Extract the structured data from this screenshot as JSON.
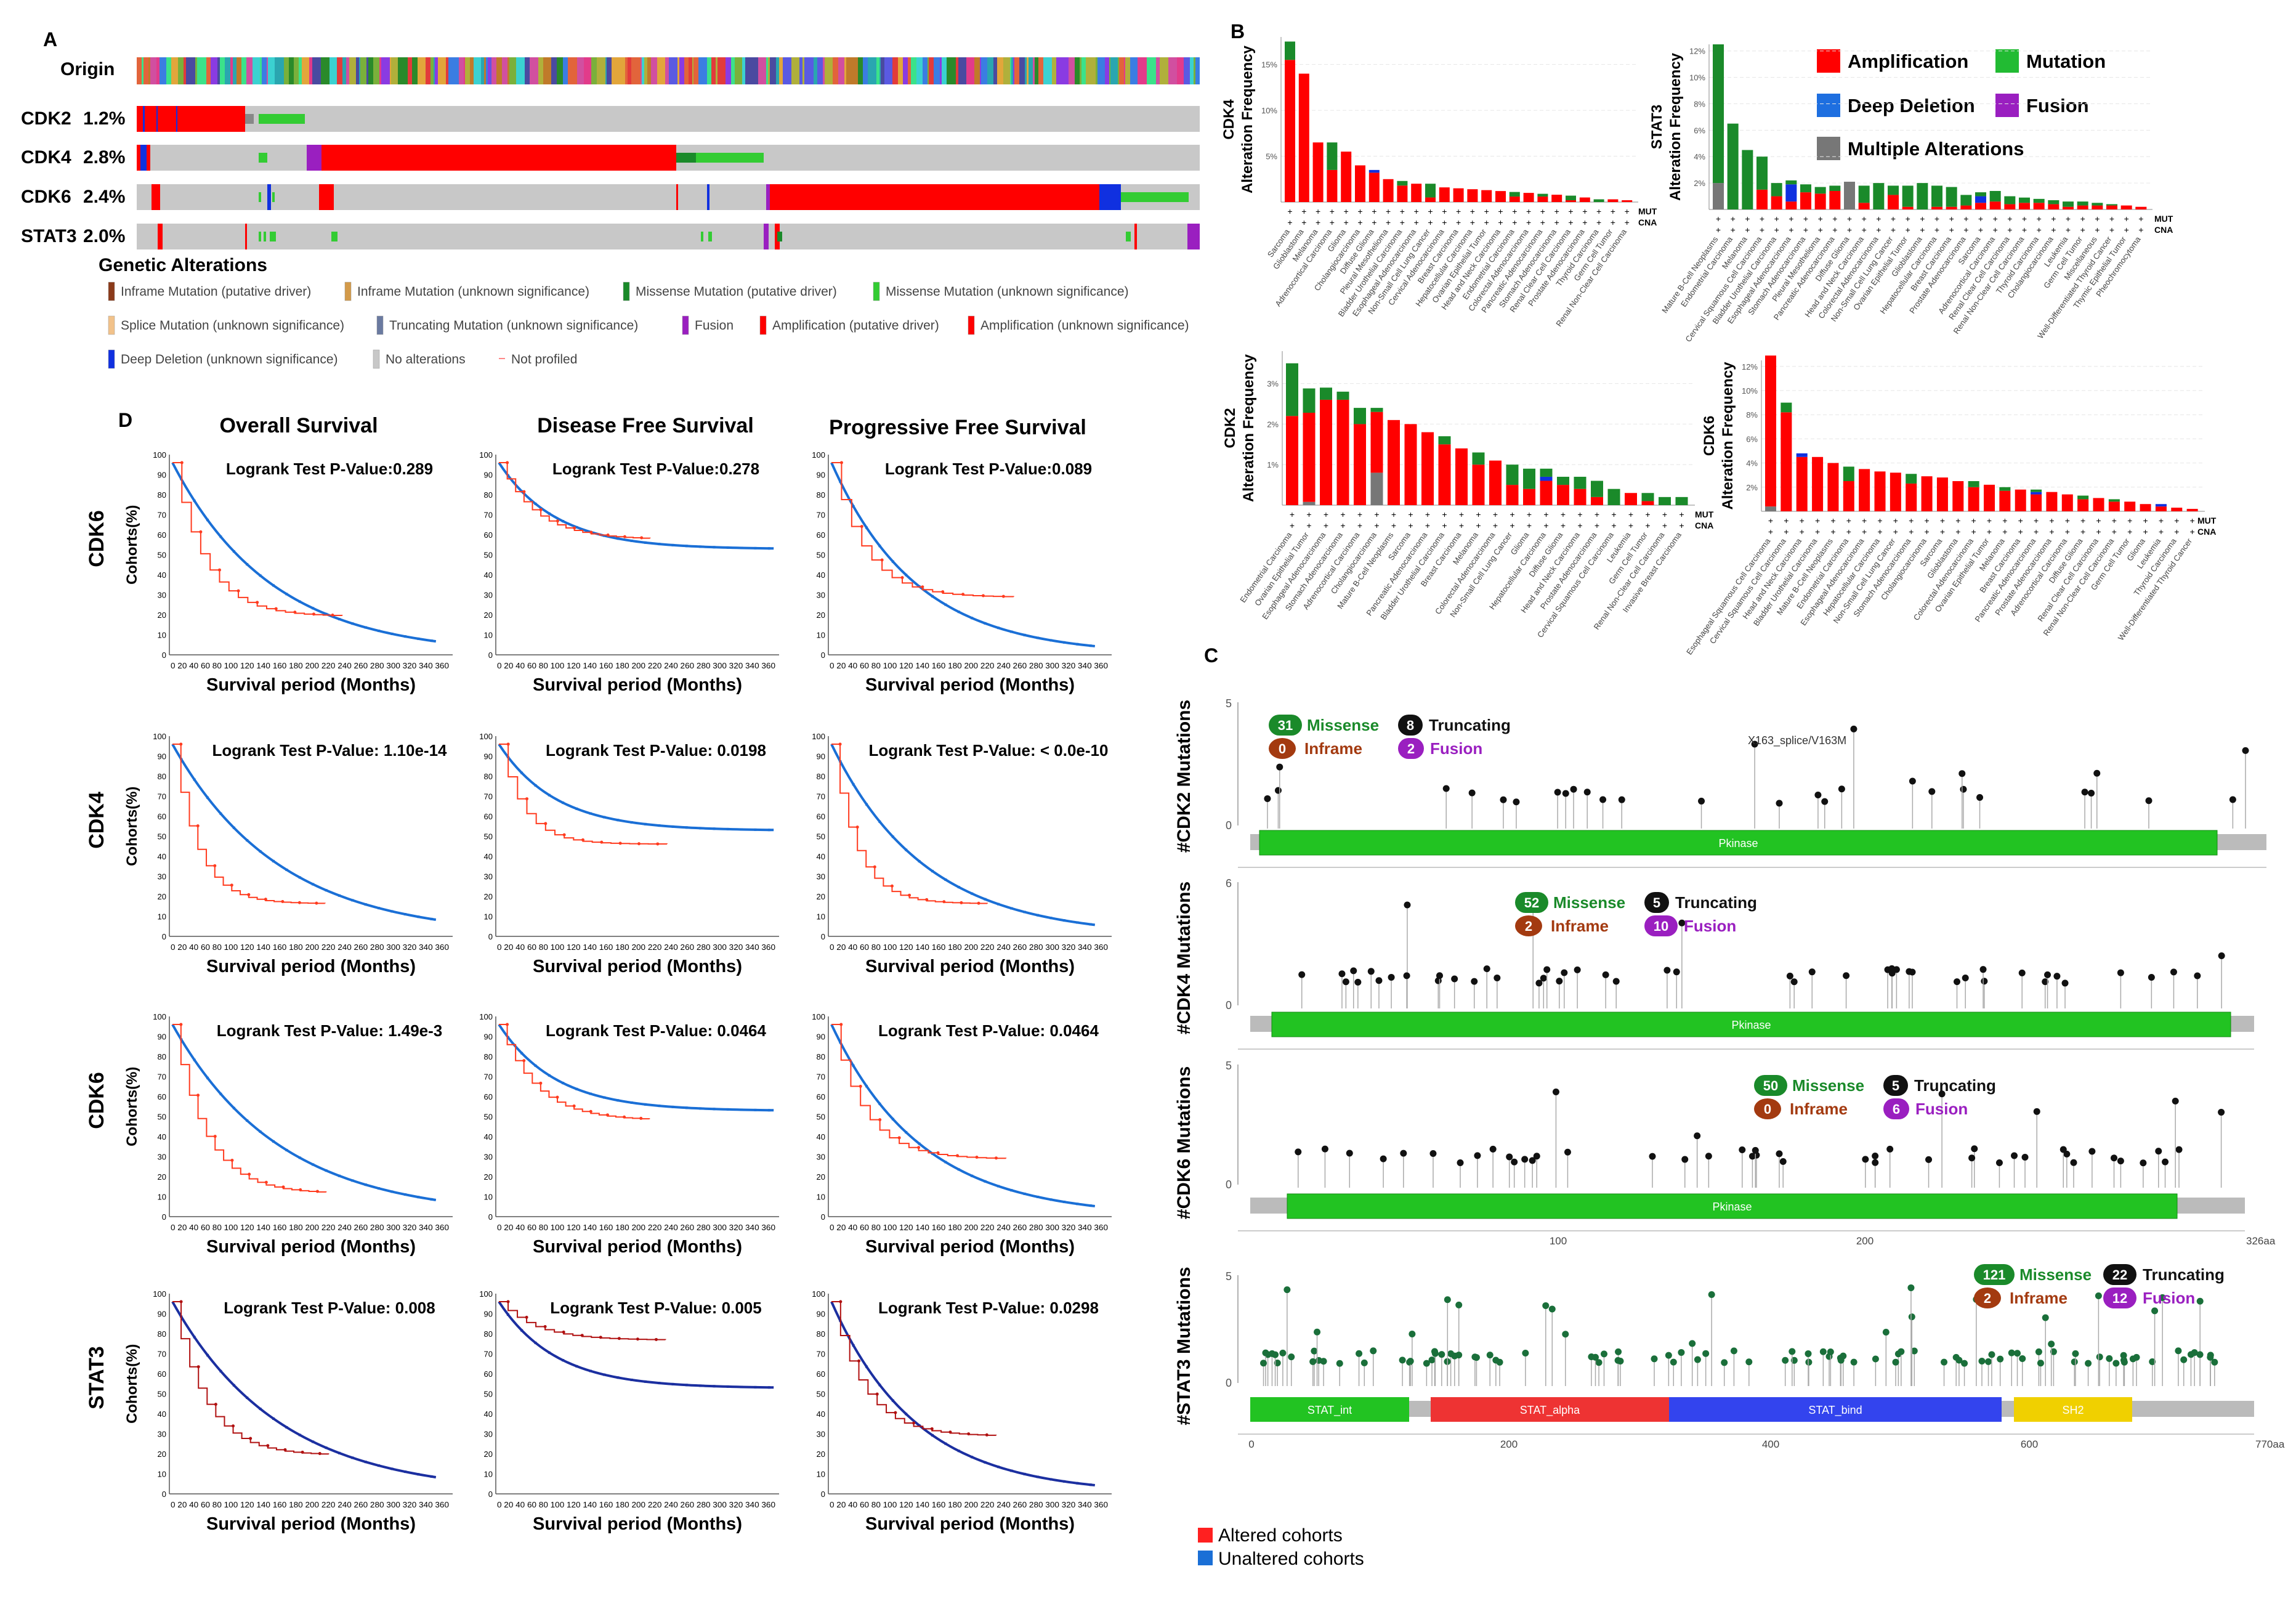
{
  "colors": {
    "amplification": "#ff0000",
    "mutation": "#1a8a2a",
    "mutation_light": "#22bb33",
    "deep_deletion": "#1030e0",
    "fusion": "#9a1fc0",
    "multiple": "#777777",
    "gray_track": "#c8c8c8",
    "altered": "#ff3b1f",
    "unaltered": "#1a6fd6",
    "pkinase": "#22c322",
    "stat_int": "#22c322",
    "stat_alpha": "#ee3333",
    "stat_bind": "#3344ee",
    "sh2": "#f0d000"
  },
  "panel_labels": {
    "a": "A",
    "b": "B",
    "c": "C",
    "d": "D"
  },
  "oncoprint": {
    "origin_label": "Origin",
    "genes": [
      {
        "name": "CDK2",
        "pct": "1.2%"
      },
      {
        "name": "CDK4",
        "pct": "2.8%"
      },
      {
        "name": "CDK6",
        "pct": "2.4%"
      },
      {
        "name": "STAT3",
        "pct": "2.0%"
      }
    ],
    "legend_title": "Genetic Alterations",
    "legend_items": [
      {
        "label": "Inframe Mutation (putative driver)",
        "color": "#8b3a1a"
      },
      {
        "label": "Inframe Mutation (unknown significance)",
        "color": "#d39a4a"
      },
      {
        "label": "Missense Mutation (putative driver)",
        "color": "#1a8a2a"
      },
      {
        "label": "Missense Mutation (unknown significance)",
        "color": "#33cc33"
      },
      {
        "label": "Splice Mutation (unknown significance)",
        "color": "#f2c28a"
      },
      {
        "label": "Truncating Mutation (unknown significance)",
        "color": "#6a7aa0"
      },
      {
        "label": "Fusion",
        "color": "#9a1fc0"
      },
      {
        "label": "Amplification (putative driver)",
        "color": "#ff0000"
      },
      {
        "label": "Amplification (unknown significance)",
        "color": "#ff0000"
      },
      {
        "label": "Deep Deletion (unknown significance)",
        "color": "#1030e0"
      },
      {
        "label": "No alterations",
        "color": "#c8c8c8"
      },
      {
        "label": "Not profiled",
        "color": "#ffffff"
      }
    ]
  },
  "panel_b": {
    "legend": [
      "Amplification",
      "Mutation",
      "Deep Deletion",
      "Fusion",
      "Multiple Alterations"
    ],
    "mut_label": "MUT",
    "cna_label": "CNA",
    "plus": "+",
    "y_label": "Alteration Frequency",
    "genes": [
      "CDK4",
      "STAT3",
      "CDK2",
      "CDK6"
    ],
    "cdk4_ticks": [
      "15%",
      "10%",
      "5%"
    ],
    "stat3_ticks": [
      "12%",
      "10%",
      "8%",
      "6%",
      "4%",
      "2%"
    ],
    "cdk2_ticks": [
      "3%",
      "2%",
      "1%"
    ],
    "cdk6_ticks": [
      "12%",
      "10%",
      "8%",
      "6%",
      "4%",
      "2%"
    ],
    "cdk4_cats": [
      "Sarcoma",
      "Glioblastoma",
      "Melanoma",
      "Adrenocortical Carcinoma",
      "Glioma",
      "Cholangiocarcinoma",
      "Diffuse Glioma",
      "Pleural Mesothelioma",
      "Bladder Urothelial Carcinoma",
      "Esophageal Adenocarcinoma",
      "Non-Small Cell Lung Cancer",
      "Cervical Adenocarcinoma",
      "Breast Carcinoma",
      "Hepatocellular Carcinoma",
      "Ovarian Epithelial Tumor",
      "Head and Neck Carcinoma",
      "Endometrial Carcinoma",
      "Colorectal Adenocarcinoma",
      "Pancreatic Adenocarcinoma",
      "Stomach Adenocarcinoma",
      "Renal Clear Cell Carcinoma",
      "Prostate Adenocarcinoma",
      "Thyroid Carcinoma",
      "Germ Cell Tumor",
      "Renal Non-Clear Cell Carcinoma"
    ],
    "stat3_cats": [
      "Mature B-Cell Neoplasms",
      "Endometrial Carcinoma",
      "Melanoma",
      "Cervical Squamous Cell Carcinoma",
      "Bladder Urothelial Carcinoma",
      "Esophageal Adenocarcinoma",
      "Stomach Adenocarcinoma",
      "Pleural Mesothelioma",
      "Pancreatic Adenocarcinoma",
      "Diffuse Glioma",
      "Head and Neck Carcinoma",
      "Colorectal Adenocarcinoma",
      "Non-Small Cell Lung Cancer",
      "Ovarian Epithelial Tumor",
      "Glioblastoma",
      "Hepatocellular Carcinoma",
      "Breast Carcinoma",
      "Prostate Adenocarcinoma",
      "Sarcoma",
      "Adrenocortical Carcinoma",
      "Renal Clear Cell Carcinoma",
      "Renal Non-Clear Cell Carcinoma",
      "Thyroid Carcinoma",
      "Cholangiocarcinoma",
      "Leukemia",
      "Germ Cell Tumor",
      "Miscellaneous",
      "Well-Differentiated Thyroid Cancer",
      "Thymic Epithelial Tumor",
      "Pheochromocytoma"
    ],
    "cdk2_cats": [
      "Endometrial Carcinoma",
      "Ovarian Epithelial Tumor",
      "Esophageal Adenocarcinoma",
      "Stomach Adenocarcinoma",
      "Adrenocortical Carcinoma",
      "Cholangiocarcinoma",
      "Mature B-Cell Neoplasms",
      "Sarcoma",
      "Pancreatic Adenocarcinoma",
      "Bladder Urothelial Carcinoma",
      "Breast Carcinoma",
      "Melanoma",
      "Colorectal Adenocarcinoma",
      "Non-Small Cell Lung Cancer",
      "Glioma",
      "Hepatocellular Carcinoma",
      "Diffuse Glioma",
      "Head and Neck Carcinoma",
      "Prostate Adenocarcinoma",
      "Cervical Squamous Cell Carcinoma",
      "Leukemia",
      "Germ Cell Tumor",
      "Renal Non-Clear Cell Carcinoma",
      "Invasive Breast Carcinoma"
    ],
    "cdk6_cats": [
      "Esophageal Squamous Cell Carcinoma",
      "Cervical Squamous Cell Carcinoma",
      "Head and Neck Carcinoma",
      "Bladder Urothelial Carcinoma",
      "Mature B-Cell Neoplasms",
      "Endometrial Carcinoma",
      "Esophageal Adenocarcinoma",
      "Hepatocellular Carcinoma",
      "Non-Small Cell Lung Cancer",
      "Stomach Adenocarcinoma",
      "Cholangiocarcinoma",
      "Sarcoma",
      "Glioblastoma",
      "Colorectal Adenocarcinoma",
      "Ovarian Epithelial Tumor",
      "Melanoma",
      "Breast Carcinoma",
      "Pancreatic Adenocarcinoma",
      "Prostate Adenocarcinoma",
      "Adrenocortical Carcinoma",
      "Diffuse Glioma",
      "Renal Clear Cell Carcinoma",
      "Renal Non-Clear Cell Carcinoma",
      "Germ Cell Tumor",
      "Glioma",
      "Leukemia",
      "Thyroid Carcinoma",
      "Well-Differentiated Thyroid Cancer"
    ],
    "cdk4_stacks": [
      [
        2,
        15.5,
        0,
        0
      ],
      [
        0,
        14,
        0,
        0
      ],
      [
        0,
        6.5,
        0,
        0
      ],
      [
        3,
        3.5,
        0,
        0
      ],
      [
        0,
        5.5,
        0,
        0
      ],
      [
        0,
        4,
        0,
        0
      ],
      [
        0,
        3.2,
        0.3,
        0
      ],
      [
        0,
        2.5,
        0,
        0
      ],
      [
        0.5,
        1.8,
        0,
        0
      ],
      [
        0,
        2,
        0,
        0
      ],
      [
        1.5,
        0.5,
        0,
        0
      ],
      [
        0,
        1.6,
        0,
        0
      ],
      [
        0,
        1.5,
        0,
        0
      ],
      [
        0,
        1.4,
        0,
        0
      ],
      [
        0,
        1.3,
        0,
        0
      ],
      [
        0,
        1.2,
        0,
        0
      ],
      [
        0.5,
        0.6,
        0,
        0
      ],
      [
        0,
        1,
        0,
        0
      ],
      [
        0.3,
        0.6,
        0,
        0
      ],
      [
        0,
        0.8,
        0,
        0
      ],
      [
        0.5,
        0.2,
        0,
        0
      ],
      [
        0,
        0.5,
        0,
        0
      ],
      [
        0.3,
        0,
        0,
        0
      ],
      [
        0,
        0.3,
        0,
        0
      ],
      [
        0,
        0.2,
        0,
        0
      ]
    ],
    "stat3_stacks": [
      [
        10.5,
        0,
        0,
        0,
        2
      ],
      [
        6.5,
        0,
        0,
        0,
        0
      ],
      [
        4.5,
        0,
        0,
        0,
        0
      ],
      [
        2.5,
        1.5,
        0,
        0,
        0
      ],
      [
        1,
        1,
        0,
        0,
        0
      ],
      [
        0.3,
        0.6,
        1.3,
        0,
        0
      ],
      [
        0.6,
        1.3,
        0,
        0,
        0
      ],
      [
        0.5,
        1.2,
        0,
        0,
        0
      ],
      [
        0.4,
        1.4,
        0,
        0,
        0
      ],
      [
        0,
        0,
        0,
        0,
        2.1
      ],
      [
        1.3,
        0.5,
        0,
        0,
        0
      ],
      [
        2,
        0,
        0,
        0,
        0
      ],
      [
        0.7,
        1.1,
        0,
        0,
        0
      ],
      [
        1.6,
        0.2,
        0,
        0,
        0
      ],
      [
        2,
        0,
        0,
        0,
        0
      ],
      [
        1.6,
        0.2,
        0,
        0,
        0
      ],
      [
        1.5,
        0.2,
        0,
        0,
        0
      ],
      [
        0.8,
        0.3,
        0,
        0,
        0
      ],
      [
        0.3,
        0.5,
        0.5,
        0,
        0
      ],
      [
        0.8,
        0.6,
        0,
        0,
        0
      ],
      [
        0.6,
        0.4,
        0,
        0,
        0
      ],
      [
        0.4,
        0.5,
        0,
        0,
        0
      ],
      [
        0.3,
        0.5,
        0,
        0,
        0
      ],
      [
        0.3,
        0.4,
        0,
        0,
        0
      ],
      [
        0.4,
        0.2,
        0,
        0,
        0
      ],
      [
        0.3,
        0.3,
        0,
        0,
        0
      ],
      [
        0.2,
        0.3,
        0,
        0,
        0
      ],
      [
        0.1,
        0.3,
        0,
        0,
        0
      ],
      [
        0,
        0.3,
        0,
        0,
        0
      ],
      [
        0,
        0.2,
        0,
        0,
        0
      ]
    ],
    "cdk2_stacks": [
      [
        1.3,
        2.2,
        0,
        0,
        0
      ],
      [
        0.6,
        2.2,
        0,
        0,
        0.08
      ],
      [
        0.3,
        2.6,
        0,
        0,
        0
      ],
      [
        0.2,
        2.6,
        0,
        0,
        0
      ],
      [
        0.4,
        2,
        0,
        0,
        0
      ],
      [
        0.1,
        1.5,
        0,
        0,
        0.8
      ],
      [
        0,
        2.1,
        0,
        0,
        0
      ],
      [
        0,
        2,
        0,
        0,
        0
      ],
      [
        0,
        1.8,
        0,
        0,
        0
      ],
      [
        0.2,
        1.5,
        0,
        0,
        0
      ],
      [
        0,
        1.4,
        0,
        0,
        0
      ],
      [
        0.3,
        1,
        0,
        0,
        0
      ],
      [
        0,
        1.1,
        0,
        0,
        0
      ],
      [
        0.5,
        0.5,
        0,
        0,
        0
      ],
      [
        0.5,
        0.4,
        0,
        0,
        0
      ],
      [
        0.2,
        0.6,
        0.1,
        0,
        0
      ],
      [
        0.2,
        0.5,
        0,
        0,
        0
      ],
      [
        0.3,
        0.4,
        0,
        0,
        0
      ],
      [
        0.4,
        0.2,
        0,
        0,
        0
      ],
      [
        0.4,
        0,
        0,
        0,
        0
      ],
      [
        0,
        0.3,
        0,
        0,
        0
      ],
      [
        0.2,
        0.1,
        0,
        0,
        0
      ],
      [
        0.2,
        0,
        0,
        0,
        0
      ],
      [
        0.2,
        0,
        0,
        0,
        0
      ]
    ],
    "cdk6_stacks": [
      [
        0,
        12.5,
        0,
        0,
        0.4
      ],
      [
        0.8,
        8.2,
        0,
        0,
        0
      ],
      [
        0,
        4.5,
        0.3,
        0,
        0
      ],
      [
        0,
        4.5,
        0,
        0,
        0
      ],
      [
        0,
        4,
        0,
        0,
        0
      ],
      [
        1.2,
        2.5,
        0,
        0,
        0
      ],
      [
        0,
        3.5,
        0,
        0,
        0
      ],
      [
        0,
        3.3,
        0,
        0,
        0
      ],
      [
        0,
        3.2,
        0,
        0,
        0
      ],
      [
        0.8,
        2.3,
        0,
        0,
        0
      ],
      [
        0,
        2.9,
        0,
        0,
        0
      ],
      [
        0,
        2.8,
        0,
        0,
        0
      ],
      [
        0,
        2.5,
        0,
        0,
        0
      ],
      [
        0.5,
        2,
        0,
        0,
        0
      ],
      [
        0,
        2.2,
        0,
        0,
        0
      ],
      [
        0.3,
        1.7,
        0,
        0,
        0
      ],
      [
        0,
        1.8,
        0,
        0,
        0
      ],
      [
        0.2,
        1.4,
        0.2,
        0,
        0
      ],
      [
        0,
        1.6,
        0,
        0,
        0
      ],
      [
        0,
        1.4,
        0,
        0,
        0
      ],
      [
        0.3,
        1,
        0,
        0,
        0
      ],
      [
        0,
        1.1,
        0,
        0,
        0
      ],
      [
        0.2,
        0.8,
        0,
        0,
        0
      ],
      [
        0,
        0.8,
        0,
        0,
        0
      ],
      [
        0,
        0.6,
        0,
        0,
        0
      ],
      [
        0,
        0.4,
        0.2,
        0,
        0
      ],
      [
        0,
        0.3,
        0,
        0,
        0
      ],
      [
        0,
        0.2,
        0,
        0,
        0
      ]
    ]
  },
  "panel_c": {
    "rows": [
      {
        "gene": "#CDK2 Mutations",
        "ymax": "5",
        "missense": "31",
        "truncating": "8",
        "inframe": "0",
        "fusion": "2",
        "domain": "Pkinase",
        "annotation": "X163_splice/V163M"
      },
      {
        "gene": "#CDK4 Mutations",
        "ymax": "6",
        "missense": "52",
        "truncating": "5",
        "inframe": "2",
        "fusion": "10",
        "domain": "Pkinase"
      },
      {
        "gene": "#CDK6 Mutations",
        "ymax": "5",
        "missense": "50",
        "truncating": "5",
        "inframe": "0",
        "fusion": "6",
        "domain": "Pkinase",
        "xticks": [
          "100",
          "200"
        ],
        "end": "326aa"
      },
      {
        "gene": "#STAT3 Mutations",
        "ymax": "5",
        "missense": "121",
        "truncating": "22",
        "inframe": "2",
        "fusion": "12",
        "domains": [
          "STAT_int",
          "STAT_alpha",
          "STAT_bind",
          "SH2"
        ],
        "xticks": [
          "0",
          "200",
          "400",
          "600"
        ],
        "end": "770aa"
      }
    ],
    "labels": {
      "missense": "Missense",
      "truncating": "Truncating",
      "inframe": "Inframe",
      "fusion": "Fusion",
      "zero": "0"
    }
  },
  "panel_d": {
    "col_titles": [
      "Overall Survival",
      "Disease Free Survival",
      "Progressive Free Survival"
    ],
    "row_genes": [
      "CDK6",
      "CDK4",
      "CDK6",
      "STAT3"
    ],
    "y_label": "Cohorts(%)",
    "x_label": "Survival period (Months)",
    "x_ticks": "0 20 40 60 80 100 120 140 160 180 200 220 240 260 280 300 320 340 360",
    "y_ticks": [
      "100",
      "90",
      "80",
      "70",
      "60",
      "50",
      "40",
      "30",
      "20",
      "10",
      "0"
    ],
    "pvalues": [
      [
        "Logrank Test P-Value:0.289",
        "Logrank Test P-Value:0.278",
        "Logrank Test P-Value:0.089"
      ],
      [
        "Logrank Test P-Value: 1.10e-14",
        "Logrank Test P-Value: 0.0198",
        "Logrank Test P-Value: < 0.0e-10"
      ],
      [
        "Logrank Test P-Value: 1.49e-3",
        "Logrank Test P-Value: 0.0464",
        "Logrank Test P-Value: 0.0464"
      ],
      [
        "Logrank Test P-Value: 0.008",
        "Logrank Test P-Value: 0.005",
        "Logrank Test P-Value: 0.0298"
      ]
    ],
    "legend": [
      "Altered cohorts",
      "Unaltered cohorts"
    ]
  }
}
